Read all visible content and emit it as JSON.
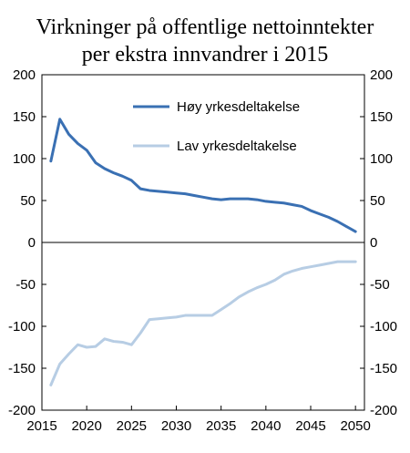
{
  "chart_data": {
    "type": "line",
    "title": [
      "Virkninger på offentlige nettoinntekter",
      "per ekstra innvandrer i 2015"
    ],
    "xlim": [
      2015,
      2051
    ],
    "ylim": [
      -200,
      200
    ],
    "x_ticks": [
      2015,
      2020,
      2025,
      2030,
      2035,
      2040,
      2045,
      2050
    ],
    "y_ticks": [
      -200,
      -150,
      -100,
      -50,
      0,
      50,
      100,
      150,
      200
    ],
    "grid": false,
    "zero_line": true,
    "legend_position": "top-right",
    "x": [
      2016,
      2017,
      2018,
      2019,
      2020,
      2021,
      2022,
      2023,
      2024,
      2025,
      2026,
      2027,
      2028,
      2029,
      2030,
      2031,
      2032,
      2033,
      2034,
      2035,
      2036,
      2037,
      2038,
      2039,
      2040,
      2041,
      2042,
      2043,
      2044,
      2045,
      2046,
      2047,
      2048,
      2049,
      2050
    ],
    "series": [
      {
        "name": "Høy yrkesdeltakelse",
        "color": "#3a70b3",
        "values": [
          97,
          147,
          129,
          118,
          110,
          95,
          88,
          83,
          79,
          74,
          64,
          62,
          61,
          60,
          59,
          58,
          56,
          54,
          52,
          51,
          52,
          52,
          52,
          51,
          49,
          48,
          47,
          45,
          43,
          38,
          34,
          30,
          25,
          19,
          13
        ]
      },
      {
        "name": "Lav yrkesdeltakelse",
        "color": "#b7cde4",
        "values": [
          -170,
          -145,
          -133,
          -122,
          -125,
          -124,
          -115,
          -118,
          -119,
          -122,
          -108,
          -92,
          -91,
          -90,
          -89,
          -87,
          -87,
          -87,
          -87,
          -80,
          -73,
          -65,
          -59,
          -54,
          -50,
          -45,
          -38,
          -34,
          -31,
          -29,
          -27,
          -25,
          -23,
          -23,
          -23
        ]
      }
    ]
  }
}
